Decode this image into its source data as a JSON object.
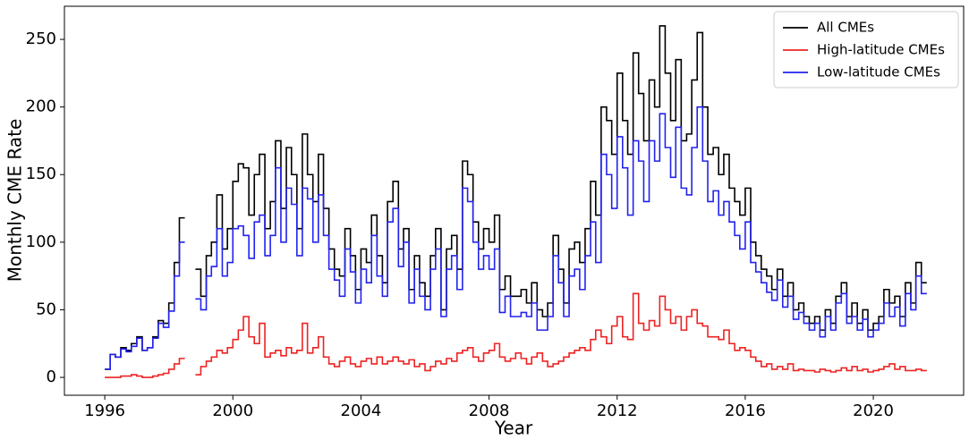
{
  "chart_data": {
    "type": "step",
    "xlabel": "Year",
    "ylabel": "Monthly CME Rate",
    "xlim": [
      1994.74,
      2022.82
    ],
    "ylim": [
      -13.2,
      274.5
    ],
    "xticks": [
      1996,
      2000,
      2004,
      2008,
      2012,
      2016,
      2020
    ],
    "yticks": [
      0,
      50,
      100,
      150,
      200,
      250
    ],
    "legend": "upper right",
    "x": [
      1996,
      1996.17,
      1996.33,
      1996.5,
      1996.67,
      1996.83,
      1997,
      1997.17,
      1997.33,
      1997.5,
      1997.67,
      1997.83,
      1998,
      1998.17,
      1998.33,
      1998.5,
      1998.67,
      1998.83,
      1999,
      1999.17,
      1999.33,
      1999.5,
      1999.67,
      1999.83,
      2000,
      2000.17,
      2000.33,
      2000.5,
      2000.67,
      2000.83,
      2001,
      2001.17,
      2001.33,
      2001.5,
      2001.67,
      2001.83,
      2002,
      2002.17,
      2002.33,
      2002.5,
      2002.67,
      2002.83,
      2003,
      2003.17,
      2003.33,
      2003.5,
      2003.67,
      2003.83,
      2004,
      2004.17,
      2004.33,
      2004.5,
      2004.67,
      2004.83,
      2005,
      2005.17,
      2005.33,
      2005.5,
      2005.67,
      2005.83,
      2006,
      2006.17,
      2006.33,
      2006.5,
      2006.67,
      2006.83,
      2007,
      2007.17,
      2007.33,
      2007.5,
      2007.67,
      2007.83,
      2008,
      2008.17,
      2008.33,
      2008.5,
      2008.67,
      2008.83,
      2009,
      2009.17,
      2009.33,
      2009.5,
      2009.67,
      2009.83,
      2010,
      2010.17,
      2010.33,
      2010.5,
      2010.67,
      2010.83,
      2011,
      2011.17,
      2011.33,
      2011.5,
      2011.67,
      2011.83,
      2012,
      2012.17,
      2012.33,
      2012.5,
      2012.67,
      2012.83,
      2013,
      2013.17,
      2013.33,
      2013.5,
      2013.67,
      2013.83,
      2014,
      2014.17,
      2014.33,
      2014.5,
      2014.67,
      2014.83,
      2015,
      2015.17,
      2015.33,
      2015.5,
      2015.67,
      2015.83,
      2016,
      2016.17,
      2016.33,
      2016.5,
      2016.67,
      2016.83,
      2017,
      2017.17,
      2017.33,
      2017.5,
      2017.67,
      2017.83,
      2018,
      2018.17,
      2018.33,
      2018.5,
      2018.67,
      2018.83,
      2019,
      2019.17,
      2019.33,
      2019.5,
      2019.67,
      2019.83,
      2020,
      2020.17,
      2020.33,
      2020.5,
      2020.67,
      2020.83,
      2021,
      2021.17,
      2021.33,
      2021.5
    ],
    "series": [
      {
        "name": "All CMEs",
        "color": "#000000",
        "values": [
          6,
          17,
          15,
          22,
          20,
          25,
          30,
          20,
          22,
          30,
          42,
          40,
          55,
          85,
          118,
          null,
          null,
          80,
          60,
          90,
          100,
          135,
          95,
          110,
          145,
          158,
          155,
          120,
          150,
          165,
          110,
          130,
          175,
          125,
          170,
          150,
          110,
          180,
          150,
          130,
          165,
          125,
          95,
          80,
          75,
          110,
          90,
          65,
          95,
          85,
          120,
          90,
          70,
          130,
          145,
          95,
          110,
          65,
          90,
          70,
          60,
          90,
          110,
          50,
          95,
          105,
          80,
          160,
          150,
          115,
          95,
          110,
          100,
          120,
          65,
          75,
          60,
          60,
          65,
          55,
          70,
          50,
          45,
          55,
          105,
          80,
          55,
          95,
          100,
          85,
          110,
          145,
          120,
          200,
          190,
          165,
          225,
          190,
          165,
          240,
          210,
          175,
          220,
          200,
          260,
          225,
          190,
          235,
          175,
          180,
          220,
          255,
          200,
          165,
          170,
          150,
          165,
          140,
          130,
          120,
          140,
          100,
          90,
          80,
          75,
          65,
          80,
          60,
          70,
          50,
          55,
          45,
          40,
          45,
          35,
          50,
          40,
          60,
          70,
          45,
          55,
          40,
          50,
          35,
          40,
          45,
          65,
          55,
          60,
          45,
          70,
          55,
          85,
          70
        ]
      },
      {
        "name": "High-latitude CMEs",
        "color": "#ee2222",
        "values": [
          0,
          0,
          0,
          1,
          1,
          2,
          1,
          0,
          0,
          1,
          2,
          3,
          6,
          10,
          14,
          null,
          null,
          2,
          8,
          12,
          15,
          20,
          18,
          22,
          28,
          35,
          45,
          30,
          25,
          40,
          15,
          18,
          20,
          16,
          22,
          18,
          20,
          40,
          18,
          22,
          30,
          15,
          10,
          8,
          12,
          15,
          10,
          8,
          12,
          14,
          10,
          15,
          10,
          12,
          15,
          12,
          10,
          13,
          8,
          10,
          5,
          8,
          12,
          10,
          14,
          12,
          18,
          20,
          22,
          15,
          12,
          18,
          20,
          25,
          15,
          12,
          14,
          18,
          14,
          10,
          15,
          18,
          12,
          8,
          10,
          12,
          15,
          18,
          20,
          22,
          20,
          28,
          35,
          30,
          25,
          38,
          45,
          30,
          28,
          62,
          40,
          35,
          42,
          38,
          60,
          50,
          40,
          45,
          35,
          45,
          50,
          40,
          38,
          30,
          30,
          28,
          35,
          25,
          20,
          22,
          20,
          15,
          12,
          8,
          10,
          6,
          8,
          6,
          10,
          5,
          6,
          5,
          5,
          4,
          6,
          5,
          4,
          5,
          7,
          5,
          8,
          5,
          6,
          4,
          5,
          6,
          8,
          10,
          6,
          8,
          5,
          5,
          6,
          5
        ]
      },
      {
        "name": "Low-latitude CMEs",
        "color": "#2222ee",
        "values": [
          6,
          17,
          15,
          21,
          19,
          23,
          29,
          20,
          22,
          29,
          40,
          37,
          49,
          75,
          100,
          null,
          null,
          58,
          50,
          75,
          82,
          110,
          75,
          85,
          110,
          112,
          105,
          88,
          115,
          120,
          90,
          105,
          155,
          100,
          140,
          128,
          90,
          140,
          132,
          100,
          135,
          105,
          80,
          72,
          60,
          95,
          78,
          55,
          80,
          70,
          105,
          75,
          60,
          115,
          125,
          82,
          100,
          55,
          80,
          60,
          50,
          80,
          95,
          45,
          80,
          90,
          65,
          140,
          130,
          100,
          80,
          90,
          80,
          95,
          48,
          60,
          45,
          45,
          48,
          45,
          55,
          35,
          35,
          45,
          90,
          70,
          45,
          75,
          80,
          65,
          90,
          115,
          85,
          165,
          150,
          125,
          178,
          155,
          120,
          175,
          160,
          130,
          175,
          160,
          195,
          170,
          148,
          185,
          140,
          135,
          170,
          200,
          160,
          130,
          138,
          120,
          130,
          115,
          105,
          95,
          115,
          85,
          78,
          70,
          63,
          57,
          72,
          52,
          60,
          43,
          48,
          40,
          35,
          40,
          30,
          45,
          35,
          55,
          62,
          40,
          45,
          35,
          43,
          30,
          35,
          40,
          55,
          45,
          52,
          38,
          62,
          50,
          75,
          62
        ]
      }
    ]
  }
}
